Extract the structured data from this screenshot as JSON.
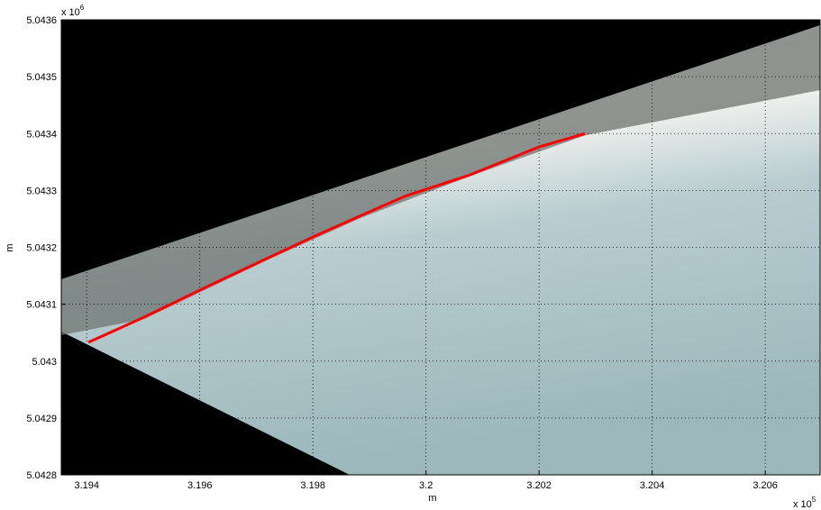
{
  "chart_data": {
    "type": "line",
    "x_label": "m",
    "y_label": "m",
    "x_multiplier": {
      "base": "x 10",
      "exponent": "5"
    },
    "y_multiplier": {
      "base": "x 10",
      "exponent": "6"
    },
    "x": [
      3.19403,
      3.19501,
      3.19613,
      3.19724,
      3.19804,
      3.19883,
      3.19963,
      3.20074,
      3.20201,
      3.20281
    ],
    "series": [
      {
        "color": "#ff0000",
        "values": [
          5.043033,
          5.043077,
          5.043131,
          5.043183,
          5.04322,
          5.043255,
          5.04329,
          5.043326,
          5.043377,
          5.0434
        ]
      }
    ],
    "xlim": [
      3.19355,
      3.20697
    ],
    "ylim": [
      5.0428,
      5.0436
    ],
    "xticks": [
      3.194,
      3.196,
      3.198,
      3.2,
      3.202,
      3.204,
      3.206
    ],
    "yticks": [
      5.0428,
      5.0429,
      5.043,
      5.0431,
      5.0432,
      5.0433,
      5.0434,
      5.0435,
      5.0436
    ],
    "grid": true
  }
}
